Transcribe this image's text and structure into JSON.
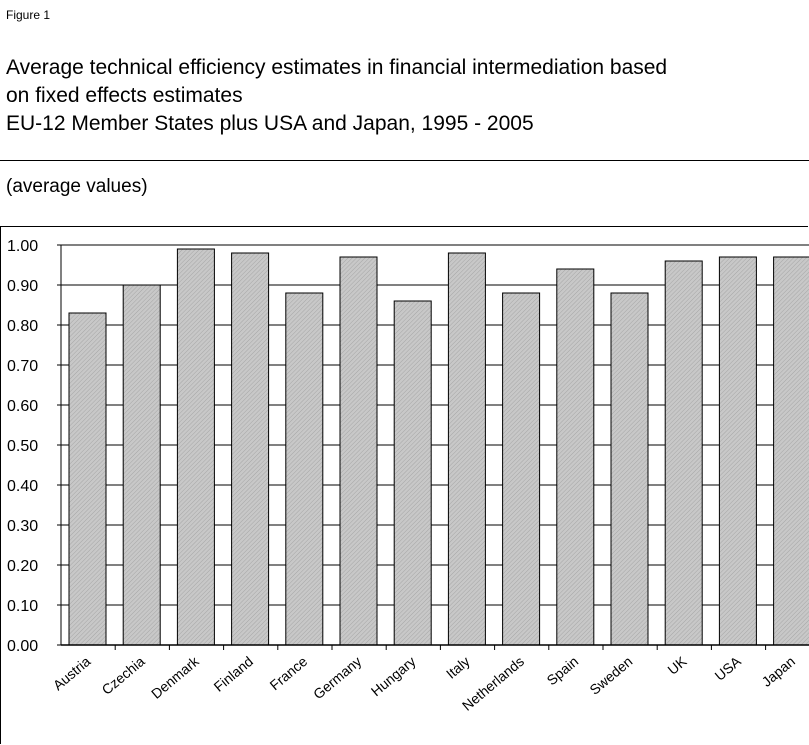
{
  "figure_label": "Figure 1",
  "title_lines": [
    "Average technical efficiency estimates in financial intermediation based",
    "on fixed effects estimates",
    "EU-12 Member States plus USA and Japan, 1995 - 2005"
  ],
  "units_note": "(average values)",
  "colors": {
    "bar_fill": "#c8c8c8",
    "bar_hatch": "#a6a6a6",
    "bar_stroke": "#000000",
    "grid": "#000000"
  },
  "chart_data": {
    "type": "bar",
    "categories": [
      "Austria",
      "Czechia",
      "Denmark",
      "Finland",
      "France",
      "Germany",
      "Hungary",
      "Italy",
      "Netherlands",
      "Spain",
      "Sweden",
      "UK",
      "USA",
      "Japan"
    ],
    "values": [
      0.83,
      0.9,
      0.99,
      0.98,
      0.88,
      0.97,
      0.86,
      0.98,
      0.88,
      0.94,
      0.88,
      0.96,
      0.97,
      0.97
    ],
    "ylim": [
      0,
      1.0
    ],
    "yticks": [
      "0.00",
      "0.10",
      "0.20",
      "0.30",
      "0.40",
      "0.50",
      "0.60",
      "0.70",
      "0.80",
      "0.90",
      "1.00"
    ],
    "grid": true,
    "legend": "none"
  }
}
